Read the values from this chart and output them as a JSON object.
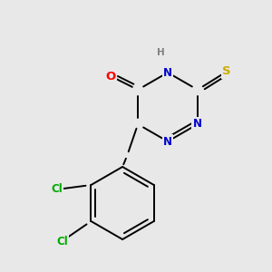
{
  "bg_color": "#e8e8e8",
  "atom_colors": {
    "N": "#0000cc",
    "O": "#ff0000",
    "S": "#ccaa00",
    "Cl": "#00aa00",
    "H": "#808080"
  },
  "font_size": 8.5,
  "bond_width": 1.4,
  "figsize": [
    3.0,
    3.0
  ],
  "dpi": 100
}
